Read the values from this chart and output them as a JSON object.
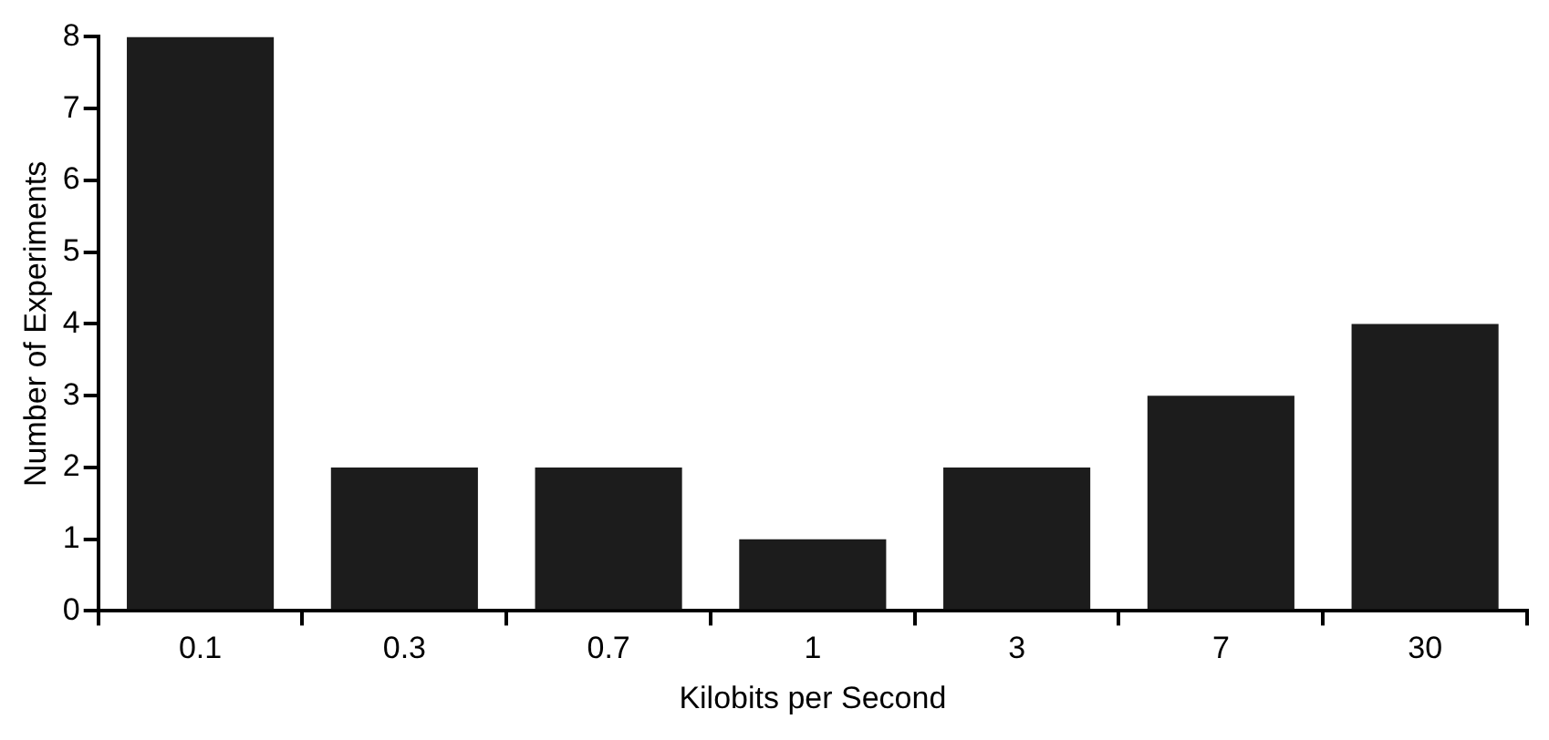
{
  "chart_data": {
    "type": "bar",
    "xlabel": "Kilobits per Second",
    "ylabel": "Number of Experiments",
    "categories": [
      "0.1",
      "0.3",
      "0.7",
      "1",
      "3",
      "7",
      "30"
    ],
    "values": [
      8,
      2,
      2,
      1,
      2,
      3,
      4
    ],
    "color": "#1c1c1c",
    "ylim": [
      0,
      8
    ],
    "yticks": [
      0,
      1,
      2,
      3,
      4,
      5,
      6,
      7,
      8
    ],
    "grid": false,
    "legend": false
  }
}
